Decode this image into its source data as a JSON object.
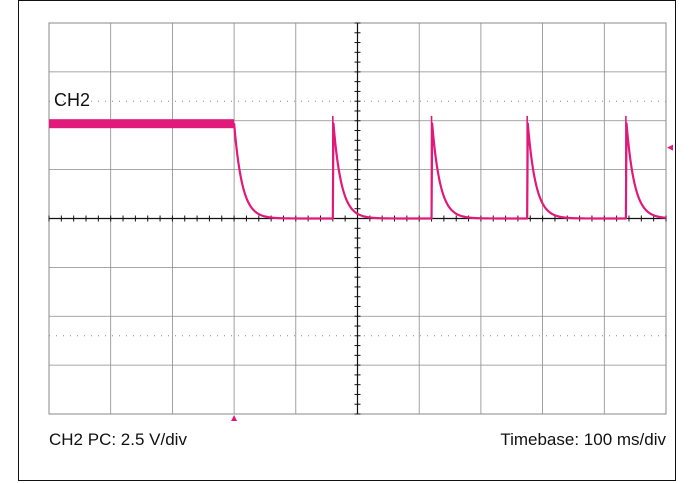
{
  "channel_label": "CH2",
  "scale_text": "CH2 PC: 2.5 V/div",
  "timebase_text": "Timebase: 100 ms/div",
  "colors": {
    "trace": "#e0197a",
    "grid": "#8a8a8a",
    "axis": "#111111",
    "background": "#ffffff"
  },
  "chart_data": {
    "type": "line",
    "title": "",
    "xlabel": "",
    "ylabel": "",
    "grid": true,
    "divisions": {
      "x": 10,
      "y": 8
    },
    "xlim": [
      0,
      10
    ],
    "ylim": [
      -4,
      4
    ],
    "series": [
      {
        "name": "CH2",
        "description_units": "divisions",
        "baseline_level": 0,
        "high_level": 1.95,
        "high_until": 3.0,
        "pulse_times": [
          4.6,
          6.2,
          7.75,
          9.35
        ],
        "pulse_peak": 2.1,
        "decay_time_div": 0.13
      }
    ],
    "markers": {
      "trigger_level_marker": 1.45,
      "trigger_time_marker": 3.0
    }
  }
}
